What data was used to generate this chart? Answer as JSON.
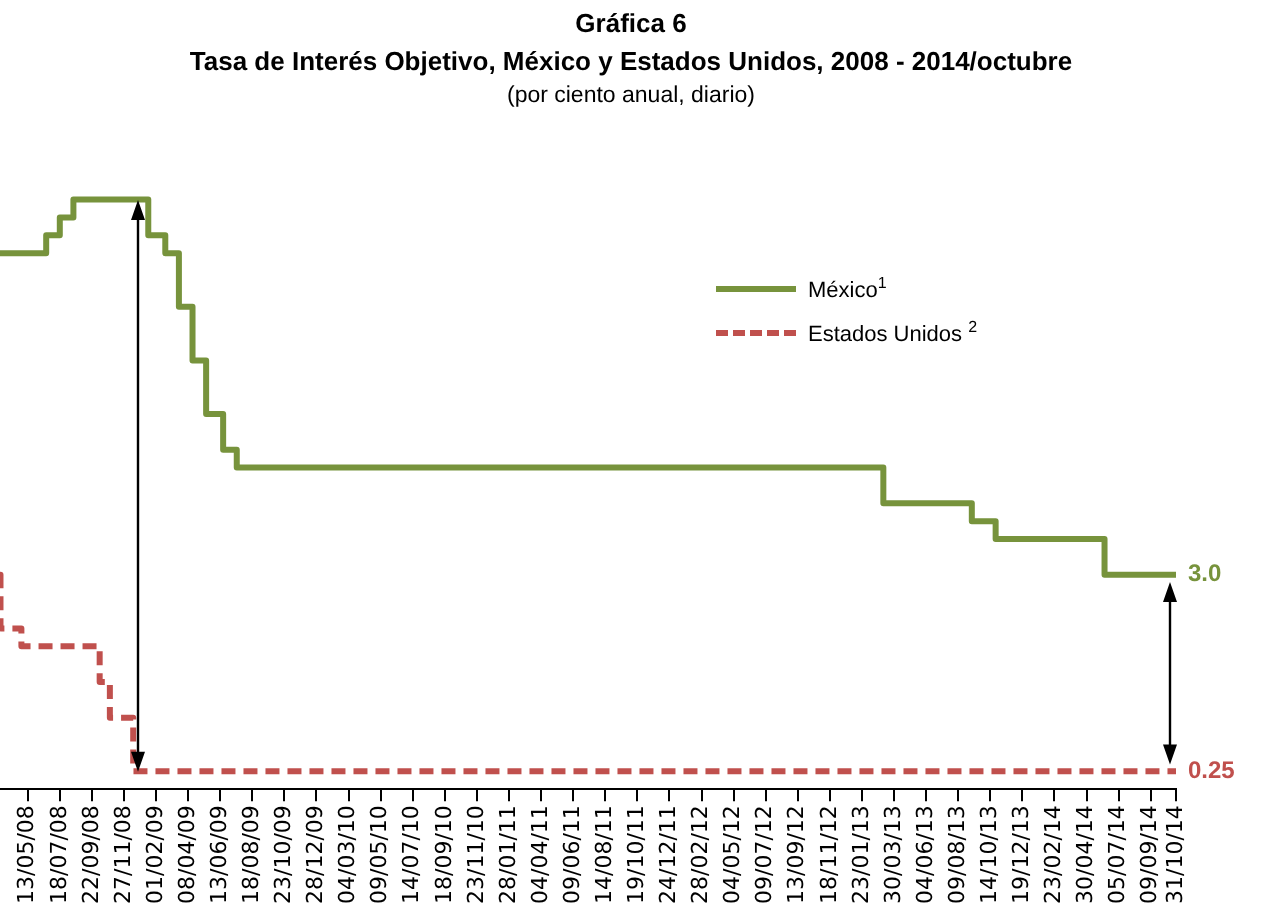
{
  "chart_data": {
    "type": "step",
    "title": "Gráfica 6",
    "subtitle": "Tasa de Interés Objetivo, México y Estados Unidos, 2008 - 2014/octubre",
    "annotations": [
      "(por ciento anual, diario)"
    ],
    "series": [
      {
        "name": "México$^{1}$",
        "color": "#77933c",
        "line_style": "solid",
        "x": [
          "2008-03-17",
          "2008-06-20",
          "2008-07-18",
          "2008-08-15",
          "2009-01-16",
          "2009-02-20",
          "2009-03-20",
          "2009-04-17",
          "2009-05-15",
          "2009-06-19",
          "2009-07-17",
          "2013-03-08",
          "2013-09-06",
          "2013-10-25",
          "2014-06-06",
          "2014-10-31"
        ],
        "values": [
          7.5,
          7.75,
          8.0,
          8.25,
          7.75,
          7.5,
          6.75,
          6.0,
          5.25,
          4.75,
          4.5,
          4.0,
          3.75,
          3.5,
          3.0,
          3.0
        ],
        "value_labels": [
          null,
          null,
          null,
          null,
          null,
          null,
          null,
          null,
          null,
          null,
          null,
          null,
          null,
          null,
          null,
          "3.0"
        ]
      },
      {
        "name": "Estados Unidos $^{2}$",
        "color": "#c0504d",
        "line_style": "dashed",
        "x": [
          "2008-03-17",
          "2008-03-18",
          "2008-04-30",
          "2008-10-08",
          "2008-10-29",
          "2008-12-16",
          "2014-10-31"
        ],
        "values": [
          3.0,
          2.25,
          2.0,
          1.5,
          1.0,
          0.25,
          0.25
        ],
        "value_labels": [
          null,
          null,
          null,
          null,
          null,
          null,
          "0.25"
        ]
      }
    ],
    "xlim": [
      "2008-03-17",
      "2014-10-31"
    ],
    "xticks": [
      {
        "value": "2008-05-13",
        "label": "13/05/08"
      },
      {
        "value": "2008-07-18",
        "label": "18/07/08"
      },
      {
        "value": "2008-09-22",
        "label": "22/09/08"
      },
      {
        "value": "2008-11-27",
        "label": "27/11/08"
      },
      {
        "value": "2009-02-01",
        "label": "01/02/09"
      },
      {
        "value": "2009-04-08",
        "label": "08/04/09"
      },
      {
        "value": "2009-06-13",
        "label": "13/06/09"
      },
      {
        "value": "2009-08-18",
        "label": "18/08/09"
      },
      {
        "value": "2009-10-23",
        "label": "23/10/09"
      },
      {
        "value": "2009-12-28",
        "label": "28/12/09"
      },
      {
        "value": "2010-03-04",
        "label": "04/03/10"
      },
      {
        "value": "2010-05-09",
        "label": "09/05/10"
      },
      {
        "value": "2010-07-14",
        "label": "14/07/10"
      },
      {
        "value": "2010-09-18",
        "label": "18/09/10"
      },
      {
        "value": "2010-11-23",
        "label": "23/11/10"
      },
      {
        "value": "2011-01-28",
        "label": "28/01/11"
      },
      {
        "value": "2011-04-04",
        "label": "04/04/11"
      },
      {
        "value": "2011-06-09",
        "label": "09/06/11"
      },
      {
        "value": "2011-08-14",
        "label": "14/08/11"
      },
      {
        "value": "2011-10-19",
        "label": "19/10/11"
      },
      {
        "value": "2011-12-24",
        "label": "24/12/11"
      },
      {
        "value": "2012-02-28",
        "label": "28/02/12"
      },
      {
        "value": "2012-05-04",
        "label": "04/05/12"
      },
      {
        "value": "2012-07-09",
        "label": "09/07/12"
      },
      {
        "value": "2012-09-13",
        "label": "13/09/12"
      },
      {
        "value": "2012-11-18",
        "label": "18/11/12"
      },
      {
        "value": "2013-01-23",
        "label": "23/01/13"
      },
      {
        "value": "2013-03-30",
        "label": "30/03/13"
      },
      {
        "value": "2013-06-04",
        "label": "04/06/13"
      },
      {
        "value": "2013-08-09",
        "label": "09/08/13"
      },
      {
        "value": "2013-10-14",
        "label": "14/10/13"
      },
      {
        "value": "2013-12-19",
        "label": "19/12/13"
      },
      {
        "value": "2014-02-23",
        "label": "23/02/14"
      },
      {
        "value": "2014-04-30",
        "label": "30/04/14"
      },
      {
        "value": "2014-07-05",
        "label": "05/07/14"
      },
      {
        "value": "2014-09-09",
        "label": "09/09/14"
      },
      {
        "value": "2014-10-31",
        "label": "31/10/14"
      }
    ],
    "tick_labels": "x",
    "legend": "top right",
    "marker": "none"
  }
}
